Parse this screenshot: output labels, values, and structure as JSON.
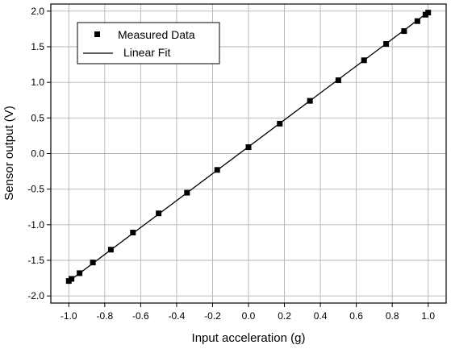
{
  "chart_data": {
    "type": "scatter",
    "title": "",
    "xlabel": "Input acceleration (g)",
    "ylabel": "Sensor output (V)",
    "xlim": [
      -1.1,
      1.1
    ],
    "ylim": [
      -2.1,
      2.1
    ],
    "grid": true,
    "legend_position": "top-left",
    "xticks": [
      -1.0,
      -0.8,
      -0.6,
      -0.4,
      -0.2,
      0.0,
      0.2,
      0.4,
      0.6,
      0.8,
      1.0
    ],
    "yticks": [
      -2.0,
      -1.5,
      -1.0,
      -0.5,
      0.0,
      0.5,
      1.0,
      1.5,
      2.0
    ],
    "xtick_labels": [
      "-1.0",
      "-0.8",
      "-0.6",
      "-0.4",
      "-0.2",
      "0.0",
      "0.2",
      "0.4",
      "0.6",
      "0.8",
      "1.0"
    ],
    "ytick_labels": [
      "-2.0",
      "-1.5",
      "-1.0",
      "-0.5",
      "0.0",
      "0.5",
      "1.0",
      "1.5",
      "2.0"
    ],
    "series": [
      {
        "name": "Measured Data",
        "kind": "scatter",
        "marker": "square",
        "color": "#000000",
        "x": [
          -1.0,
          -0.985,
          -0.94,
          -0.866,
          -0.766,
          -0.643,
          -0.5,
          -0.342,
          -0.174,
          0.0,
          0.174,
          0.342,
          0.5,
          0.643,
          0.766,
          0.866,
          0.94,
          0.985,
          1.0
        ],
        "y": [
          -1.79,
          -1.76,
          -1.68,
          -1.53,
          -1.35,
          -1.11,
          -0.84,
          -0.55,
          -0.23,
          0.09,
          0.42,
          0.74,
          1.03,
          1.31,
          1.54,
          1.72,
          1.86,
          1.95,
          1.98
        ]
      },
      {
        "name": "Linear Fit",
        "kind": "line",
        "color": "#000000",
        "x": [
          -1.0,
          1.0
        ],
        "y": [
          -1.795,
          1.985
        ]
      }
    ]
  }
}
